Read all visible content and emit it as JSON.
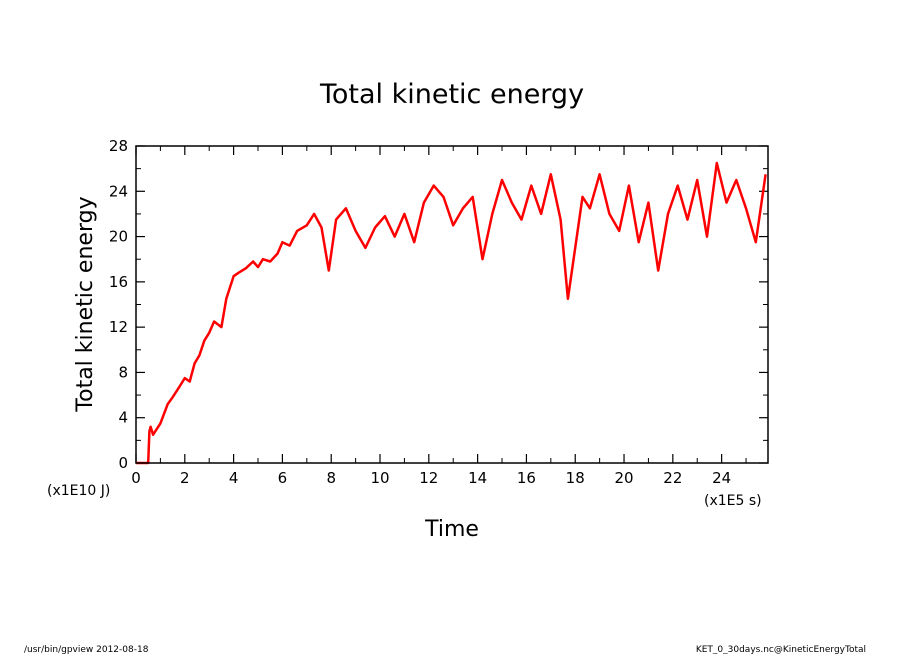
{
  "footer": {
    "left": "/usr/bin/gpview   2012-08-18",
    "right": "KET_0_30days.nc@KineticEnergyTotal"
  },
  "chart_data": {
    "type": "line",
    "title": "Total kinetic energy",
    "xlabel": "Time",
    "ylabel": "Total kinetic energy",
    "x_unit": "(x1E5 s)",
    "y_unit": "(x1E10 J)",
    "xlim": [
      0,
      25.9
    ],
    "ylim": [
      0,
      28
    ],
    "x_ticks": [
      0,
      2,
      4,
      6,
      8,
      10,
      12,
      14,
      16,
      18,
      20,
      22,
      24
    ],
    "y_ticks": [
      0,
      4,
      8,
      12,
      16,
      20,
      24,
      28
    ],
    "grid": false,
    "legend": "none",
    "line_color": "#ff0000",
    "series": [
      {
        "x": [
          0,
          0.5,
          0.55,
          0.6,
          0.7,
          1.0,
          1.3,
          1.5,
          1.8,
          2.0,
          2.2,
          2.4,
          2.6,
          2.8,
          3.0,
          3.2,
          3.5,
          3.7,
          4.0,
          4.2,
          4.5,
          4.8,
          5.0,
          5.2,
          5.5,
          5.8,
          6.0,
          6.3,
          6.6,
          7.0,
          7.3,
          7.6,
          7.9,
          8.2,
          8.6,
          9.0,
          9.4,
          9.8,
          10.2,
          10.6,
          11.0,
          11.4,
          11.8,
          12.2,
          12.6,
          13.0,
          13.4,
          13.8,
          14.2,
          14.6,
          15.0,
          15.4,
          15.8,
          16.2,
          16.6,
          17.0,
          17.4,
          17.7,
          18.0,
          18.3,
          18.6,
          19.0,
          19.4,
          19.8,
          20.2,
          20.6,
          21.0,
          21.4,
          21.8,
          22.2,
          22.6,
          23.0,
          23.4,
          23.8,
          24.2,
          24.6,
          25.0,
          25.4,
          25.8
        ],
        "y": [
          0,
          0,
          2.8,
          3.2,
          2.5,
          3.5,
          5.2,
          5.8,
          6.8,
          7.5,
          7.2,
          8.8,
          9.5,
          10.8,
          11.5,
          12.5,
          12.0,
          14.5,
          16.5,
          16.8,
          17.2,
          17.8,
          17.3,
          18.0,
          17.8,
          18.5,
          19.5,
          19.2,
          20.5,
          21.0,
          22.0,
          20.8,
          17.0,
          21.5,
          22.5,
          20.5,
          19.0,
          20.8,
          21.8,
          20.0,
          22.0,
          19.5,
          23.0,
          24.5,
          23.5,
          21.0,
          22.5,
          23.5,
          18.0,
          22.0,
          25.0,
          23.0,
          21.5,
          24.5,
          22.0,
          25.5,
          21.5,
          14.5,
          19.0,
          23.5,
          22.5,
          25.5,
          22.0,
          20.5,
          24.5,
          19.5,
          23.0,
          17.0,
          22.0,
          24.5,
          21.5,
          25.0,
          20.0,
          26.5,
          23.0,
          25.0,
          22.5,
          19.5,
          25.5
        ]
      }
    ]
  }
}
